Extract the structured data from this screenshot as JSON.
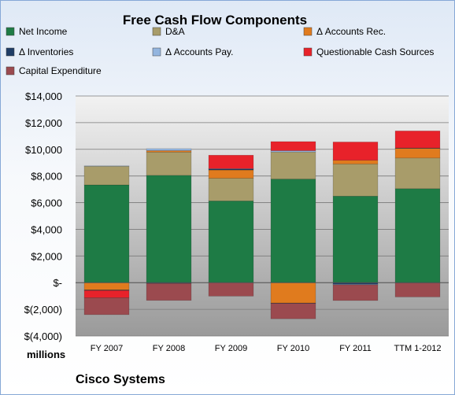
{
  "chart_data": {
    "type": "bar",
    "stacked": true,
    "title": "Free Cash Flow Components",
    "company": "Cisco Systems",
    "units": "millions",
    "categories": [
      "FY 2007",
      "FY 2008",
      "FY 2009",
      "FY 2010",
      "FY 2011",
      "TTM 1-2012"
    ],
    "ylim": [
      -4000,
      14000
    ],
    "yticks": [
      {
        "value": 14000,
        "label": "$14,000"
      },
      {
        "value": 12000,
        "label": "$12,000"
      },
      {
        "value": 10000,
        "label": "$10,000"
      },
      {
        "value": 8000,
        "label": "$8,000"
      },
      {
        "value": 6000,
        "label": "$6,000"
      },
      {
        "value": 4000,
        "label": "$4,000"
      },
      {
        "value": 2000,
        "label": "$2,000"
      },
      {
        "value": 0,
        "label": "$-"
      },
      {
        "value": -2000,
        "label": "$(2,000)"
      },
      {
        "value": -4000,
        "label": "$(4,000)"
      }
    ],
    "grid": true,
    "legend_position": "top",
    "series": [
      {
        "name": "Net Income",
        "color": "#1e7b45",
        "values": [
          7330,
          8050,
          6130,
          7770,
          6490,
          7050
        ]
      },
      {
        "name": "D&A",
        "color": "#a89c6a",
        "values": [
          1410,
          1740,
          1700,
          2030,
          2410,
          2300
        ]
      },
      {
        "name": "Δ Accounts Rec.",
        "color": "#e07b1e",
        "values": [
          -550,
          110,
          620,
          -1530,
          280,
          720
        ]
      },
      {
        "name": "Δ Inventories",
        "color": "#1f3d66",
        "values": [
          -40,
          -60,
          90,
          -20,
          -120,
          30
        ]
      },
      {
        "name": "Δ Accounts Pay.",
        "color": "#93b5df",
        "values": [
          20,
          150,
          10,
          100,
          -40,
          -30
        ]
      },
      {
        "name": "Questionable Cash Sources",
        "color": "#e8222a",
        "values": [
          -540,
          0,
          1010,
          680,
          1370,
          1280
        ]
      },
      {
        "name": "Capital Expenditure",
        "color": "#9b4a4f",
        "values": [
          -1270,
          -1270,
          -1010,
          -1160,
          -1180,
          -1040
        ]
      }
    ]
  }
}
